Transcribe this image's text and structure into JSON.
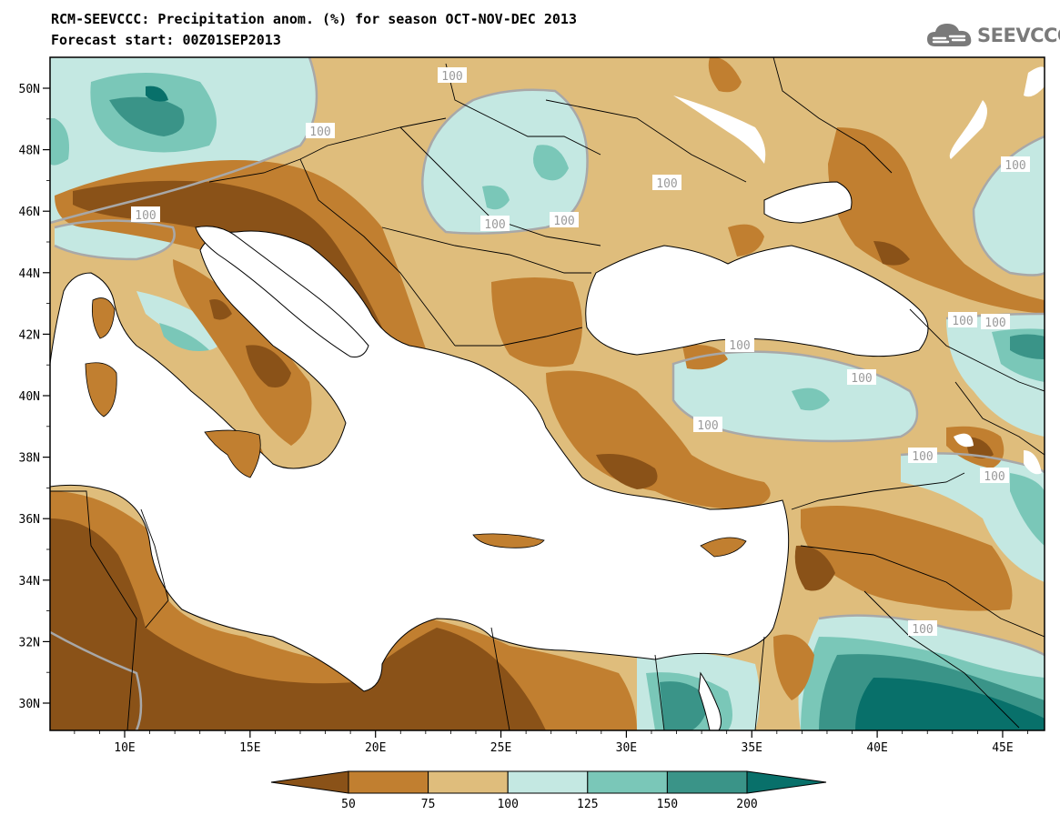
{
  "title_line1": "RCM-SEEVCCC: Precipitation anom. (%) for season OCT-NOV-DEC 2013",
  "title_line2": "Forecast start: 00Z01SEP2013",
  "logo_text": "SEEVCCC",
  "logo_icon": "cloud-icon",
  "axes": {
    "lon_labels": [
      "10E",
      "15E",
      "20E",
      "25E",
      "30E",
      "35E",
      "40E",
      "45E"
    ],
    "lat_labels": [
      "50N",
      "48N",
      "46N",
      "44N",
      "42N",
      "40N",
      "38N",
      "36N",
      "34N",
      "32N",
      "30N"
    ]
  },
  "contour_labels": [
    "100",
    "100",
    "100",
    "100",
    "100",
    "100",
    "100",
    "100",
    "100",
    "100",
    "100",
    "100",
    "100",
    "100",
    "100"
  ],
  "colorbar": {
    "labels": [
      "50",
      "75",
      "100",
      "125",
      "150",
      "200"
    ],
    "colors": [
      "#8a5218",
      "#c17f30",
      "#dfbd7c",
      "#c4e8e2",
      "#7ac7b8",
      "#3a9488",
      "#08706a"
    ]
  },
  "palette": {
    "land_dry2": "#8a5218",
    "land_dry1": "#c17f30",
    "land_dry0": "#dfbd7c",
    "land_wet0": "#c4e8e2",
    "land_wet1": "#7ac7b8",
    "land_wet2": "#3a9488",
    "land_wet3": "#08706a",
    "sea": "#ffffff",
    "contour_100": "#a8a8a8"
  }
}
